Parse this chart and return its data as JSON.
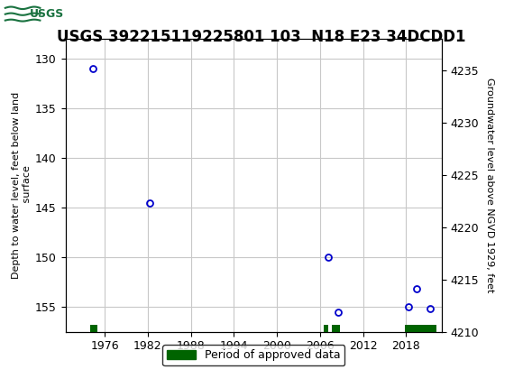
{
  "title": "USGS 392215119225801 103  N18 E23 34DCDD1",
  "left_ylabel": "Depth to water level, feet below land\n surface",
  "right_ylabel": "Groundwater level above NGVD 1929, feet",
  "background_color": "#ffffff",
  "header_color": "#1a7240",
  "grid_color": "#c8c8c8",
  "point_color": "#0000cc",
  "xlim": [
    1970.5,
    2023.0
  ],
  "ylim_left_top": 128.0,
  "ylim_left_bottom": 157.5,
  "ylim_right_top": 4238.0,
  "ylim_right_bottom": 4210.0,
  "xticks": [
    1976,
    1982,
    1988,
    1994,
    2000,
    2006,
    2012,
    2018
  ],
  "left_yticks": [
    130,
    135,
    140,
    145,
    150,
    155
  ],
  "right_yticks": [
    4235,
    4230,
    4225,
    4220,
    4215,
    4210
  ],
  "data_years": [
    1974.3,
    1982.3,
    2007.2,
    2008.5,
    2018.3,
    2019.5,
    2021.3
  ],
  "data_depths": [
    131.0,
    144.5,
    150.0,
    155.5,
    155.0,
    153.2,
    155.2
  ],
  "approved_periods": [
    [
      1974.0,
      1975.0
    ],
    [
      2006.5,
      2007.2
    ],
    [
      2007.7,
      2008.8
    ],
    [
      2017.8,
      2022.2
    ]
  ],
  "approved_color": "#006400",
  "legend_label": "Period of approved data",
  "title_fontsize": 12,
  "axis_label_fontsize": 8,
  "tick_fontsize": 9
}
